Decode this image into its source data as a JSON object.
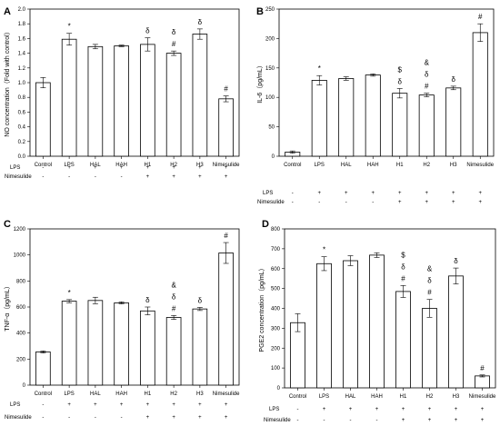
{
  "chart_data": [
    {
      "panel_label": "A",
      "type": "bar",
      "ylabel": "NO concentration（Fold with control）",
      "ylim": [
        0,
        2.0
      ],
      "yticks": [
        0,
        0.2,
        0.4,
        0.6,
        0.8,
        1.0,
        1.2,
        1.4,
        1.6,
        1.8,
        2.0
      ],
      "ytick_labels": [
        "0.0",
        "0.2",
        "0.4",
        "0.6",
        "0.8",
        "1.0",
        "1.2",
        "1.4",
        "1.6",
        "1.8",
        "2.0"
      ],
      "categories": [
        "Control",
        "LPS",
        "HAL",
        "HAH",
        "H1",
        "H2",
        "H3",
        "Nimesulide"
      ],
      "values": [
        1.0,
        1.59,
        1.49,
        1.5,
        1.52,
        1.4,
        1.66,
        0.78
      ],
      "errors": [
        0.07,
        0.08,
        0.03,
        0.01,
        0.09,
        0.03,
        0.07,
        0.04
      ],
      "annotations": [
        [],
        [
          "*"
        ],
        [],
        [],
        [
          "δ"
        ],
        [
          "δ",
          "#"
        ],
        [
          "δ"
        ],
        [
          "#"
        ]
      ],
      "treatment_rows": [
        {
          "label": "LPS",
          "values": [
            "-",
            "+",
            "+",
            "+",
            "+",
            "+",
            "+",
            "+"
          ]
        },
        {
          "label": "Nimesulide",
          "values": [
            "-",
            "-",
            "-",
            "-",
            "+",
            "+",
            "+",
            "+"
          ]
        }
      ]
    },
    {
      "panel_label": "B",
      "type": "bar",
      "ylabel": "IL-6（pg/mL）",
      "ylim": [
        0,
        250
      ],
      "yticks": [
        0,
        50,
        100,
        150,
        200,
        250
      ],
      "ytick_labels": [
        "0",
        "50",
        "100",
        "150",
        "200",
        "250"
      ],
      "categories": [
        "Control",
        "LPS",
        "HAL",
        "HAH",
        "H1",
        "H2",
        "H3",
        "Nimesulide"
      ],
      "values": [
        7,
        129,
        132,
        138,
        107,
        104,
        116,
        210
      ],
      "errors": [
        2,
        8,
        3,
        2,
        8,
        3,
        3,
        15
      ],
      "annotations": [
        [],
        [
          "*"
        ],
        [],
        [],
        [
          "$",
          "δ"
        ],
        [
          "&",
          "δ",
          "#"
        ],
        [
          "δ"
        ],
        [
          "#"
        ]
      ],
      "treatment_rows": [
        {
          "label": "LPS",
          "values": [
            "-",
            "+",
            "+",
            "+",
            "+",
            "+",
            "+",
            "+"
          ]
        },
        {
          "label": "Nimesulide",
          "values": [
            "-",
            "-",
            "-",
            "-",
            "+",
            "+",
            "+",
            "+"
          ]
        }
      ]
    },
    {
      "panel_label": "C",
      "type": "bar",
      "ylabel": "TNF-α（pg/mL）",
      "ylim": [
        0,
        1200
      ],
      "yticks": [
        0,
        200,
        400,
        600,
        800,
        1000,
        1200
      ],
      "ytick_labels": [
        "0",
        "200",
        "400",
        "600",
        "800",
        "1000",
        "1200"
      ],
      "categories": [
        "Control",
        "LPS",
        "HAL",
        "HAH",
        "H1",
        "H2",
        "H3",
        "Nimesulide"
      ],
      "values": [
        255,
        645,
        650,
        632,
        570,
        520,
        585,
        1015
      ],
      "errors": [
        8,
        12,
        25,
        8,
        30,
        15,
        12,
        80
      ],
      "annotations": [
        [],
        [
          "*"
        ],
        [],
        [],
        [
          "δ"
        ],
        [
          "&",
          "δ",
          "#"
        ],
        [
          "δ"
        ],
        [
          "#"
        ]
      ],
      "treatment_rows": [
        {
          "label": "LPS",
          "values": [
            "-",
            "+",
            "+",
            "+",
            "+",
            "+",
            "+",
            "+"
          ]
        },
        {
          "label": "Nimesulide",
          "values": [
            "-",
            "-",
            "-",
            "-",
            "+",
            "+",
            "+",
            "+"
          ]
        }
      ]
    },
    {
      "panel_label": "D",
      "type": "bar",
      "ylabel": "PGE2 concentration（pg/mL）",
      "ylim": [
        0,
        800
      ],
      "yticks": [
        0,
        100,
        200,
        300,
        400,
        500,
        600,
        700,
        800
      ],
      "ytick_labels": [
        "0",
        "100",
        "200",
        "300",
        "400",
        "500",
        "600",
        "700",
        "800"
      ],
      "categories": [
        "Control",
        "LPS",
        "HAL",
        "HAH",
        "H1",
        "H2",
        "H3",
        "Nimesulide"
      ],
      "values": [
        328,
        625,
        640,
        668,
        485,
        400,
        563,
        60
      ],
      "errors": [
        45,
        35,
        25,
        12,
        30,
        45,
        40,
        5
      ],
      "annotations": [
        [],
        [
          "*"
        ],
        [],
        [],
        [
          "$",
          "δ",
          "#"
        ],
        [
          "&",
          "δ",
          "#"
        ],
        [
          "δ"
        ],
        [
          "#"
        ]
      ],
      "treatment_rows": [
        {
          "label": "LPS",
          "values": [
            "-",
            "+",
            "+",
            "+",
            "+",
            "+",
            "+",
            "+"
          ]
        },
        {
          "label": "Nimesulide",
          "values": [
            "-",
            "-",
            "-",
            "-",
            "+",
            "+",
            "+",
            "+"
          ]
        }
      ]
    }
  ]
}
